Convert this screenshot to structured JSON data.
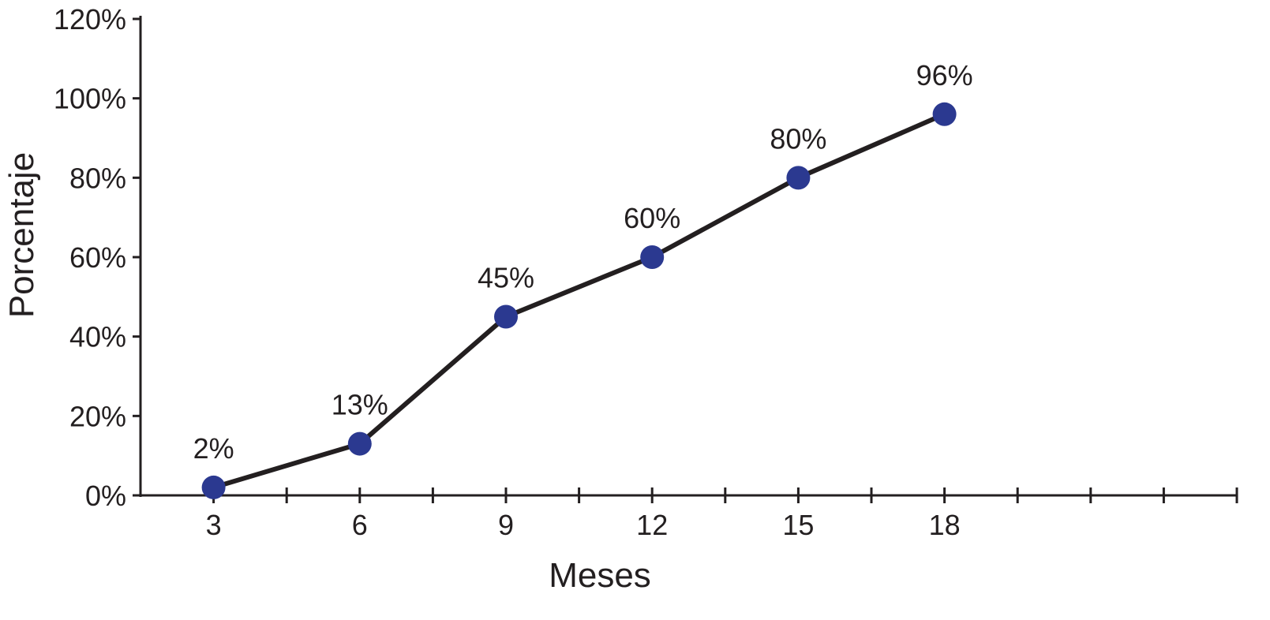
{
  "chart_data": {
    "type": "line",
    "title": "",
    "xlabel": "Meses",
    "ylabel": "Porcentaje",
    "x": [
      3,
      6,
      9,
      12,
      15,
      18
    ],
    "series": [
      {
        "values": [
          2,
          13,
          45,
          60,
          80,
          96
        ],
        "data_labels": [
          "2%",
          "13%",
          "45%",
          "60%",
          "80%",
          "96%"
        ]
      }
    ],
    "xlim": [
      1.5,
      24
    ],
    "ylim": [
      0,
      120
    ],
    "x_ticks": [
      {
        "value": 3,
        "label": "3"
      },
      {
        "value": 6,
        "label": "6"
      },
      {
        "value": 9,
        "label": "9"
      },
      {
        "value": 12,
        "label": "12"
      },
      {
        "value": 15,
        "label": "15"
      },
      {
        "value": 18,
        "label": "18"
      }
    ],
    "x_minor_ticks": [
      4.5,
      7.5,
      10.5,
      13.5,
      16.5,
      19.5,
      21,
      22.5,
      24
    ],
    "y_ticks": [
      {
        "value": 0,
        "label": "0%"
      },
      {
        "value": 20,
        "label": "20%"
      },
      {
        "value": 40,
        "label": "40%"
      },
      {
        "value": 60,
        "label": "60%"
      },
      {
        "value": 80,
        "label": "80%"
      },
      {
        "value": 100,
        "label": "100%"
      },
      {
        "value": 120,
        "label": "120%"
      }
    ],
    "grid": false,
    "legend": "none",
    "colors": {
      "line": "#231f20",
      "marker": "#2b3990",
      "axis": "#231f20",
      "text": "#231f20"
    }
  }
}
